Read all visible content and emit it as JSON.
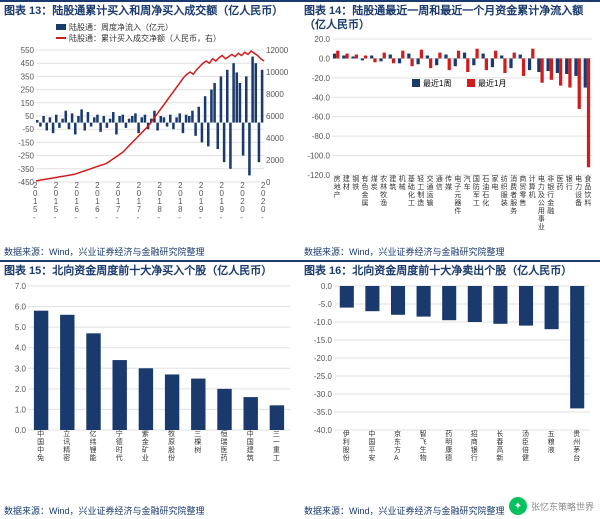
{
  "panels": {
    "tl": {
      "title": "图表 13：陆股通累计买入和周净买入成交额（亿人民币）",
      "source": "数据来源：Wind，兴业证券经济与金融研究院整理",
      "chart": {
        "type": "combo-bar-line",
        "legend": [
          {
            "label": "陆股通：周度净流入（亿元）",
            "color": "#1a3a6e",
            "kind": "bar"
          },
          {
            "label": "陆股通：累计买入成交净额（人民币，右）",
            "color": "#d01c1c",
            "kind": "line"
          }
        ],
        "x_labels": [
          "2015-03",
          "2015-09",
          "2016-03",
          "2016-09",
          "2017-03",
          "2017-09",
          "2018-03",
          "2018-09",
          "2019-03",
          "2019-09",
          "2020-03",
          "2020-09"
        ],
        "y_left": {
          "min": -450,
          "max": 550,
          "step": 100,
          "ticks": [
            -450,
            -350,
            -250,
            -150,
            -50,
            50,
            150,
            250,
            350,
            450,
            550
          ]
        },
        "y_right": {
          "min": 0,
          "max": 12000,
          "step": 2000,
          "ticks": [
            0,
            2000,
            4000,
            6000,
            8000,
            10000,
            12000
          ]
        },
        "bar_color": "#1a3a6e",
        "line_color": "#d01c1c",
        "grid_color": "#e0e0e0",
        "bars": [
          20,
          -30,
          50,
          -60,
          40,
          -80,
          60,
          -40,
          30,
          90,
          -50,
          70,
          -90,
          50,
          100,
          -60,
          80,
          -30,
          40,
          60,
          -70,
          50,
          -40,
          30,
          80,
          -90,
          50,
          60,
          -40,
          30,
          50,
          70,
          -80,
          40,
          60,
          -50,
          30,
          90,
          -60,
          50,
          40,
          -30,
          60,
          -50,
          40,
          70,
          -80,
          60,
          50,
          90,
          -100,
          120,
          -150,
          200,
          -180,
          250,
          300,
          -200,
          350,
          -300,
          400,
          -350,
          450,
          380,
          300,
          -250,
          350,
          -400,
          500,
          450,
          -300,
          400
        ],
        "line": [
          100,
          150,
          200,
          250,
          300,
          350,
          400,
          450,
          500,
          550,
          600,
          650,
          700,
          800,
          900,
          1000,
          1100,
          1200,
          1300,
          1400,
          1500,
          1600,
          1700,
          1900,
          2100,
          2300,
          2500,
          2700,
          3000,
          3300,
          3600,
          3900,
          4200,
          4500,
          4800,
          5100,
          5500,
          5900,
          6300,
          6700,
          7100,
          7500,
          7900,
          8300,
          8700,
          9100,
          9500,
          9800,
          10000,
          9800,
          10200,
          10500,
          10800,
          11000,
          10800,
          11200,
          11000,
          11300,
          11500,
          11200,
          11400,
          11600,
          11400,
          11700,
          11500,
          11800,
          11600,
          11900,
          11700,
          11500,
          11200,
          11000
        ]
      }
    },
    "tr": {
      "title": "图表 14：陆股通最近一周和最近一个月资金累计净流入额（亿人民币）",
      "source": "数据来源：Wind，兴业证券经济与金融研究院整理",
      "chart": {
        "type": "grouped-bar",
        "legend": [
          {
            "label": "最近1周",
            "color": "#1a3a6e"
          },
          {
            "label": "最近1月",
            "color": "#d01c1c"
          }
        ],
        "y": {
          "min": -120,
          "max": 20,
          "step": 20,
          "ticks": [
            -120,
            -100,
            -80,
            -60,
            -40,
            -20,
            0,
            20
          ]
        },
        "categories": [
          "房地产",
          "建材",
          "钢铁",
          "有色金属",
          "煤炭",
          "农林牧渔",
          "建筑",
          "机械",
          "基础化工",
          "轻工制造",
          "交通运输",
          "通信",
          "传媒",
          "电子元器件",
          "汽车",
          "国防军工",
          "石油石化",
          "家电",
          "纺织服装",
          "消费者服务",
          "商贸零售",
          "计算机",
          "电力及公用事业",
          "非银行金融",
          "医药",
          "银行",
          "电力设备",
          "食品饮料"
        ],
        "series_week": [
          5,
          3,
          2,
          -2,
          3,
          -3,
          4,
          -5,
          5,
          -6,
          3,
          -7,
          4,
          -8,
          6,
          -7,
          5,
          -9,
          3,
          -10,
          4,
          -12,
          -14,
          -13,
          -15,
          -16,
          -18,
          -30
        ],
        "series_month": [
          8,
          5,
          4,
          3,
          -4,
          6,
          -5,
          8,
          -8,
          9,
          -10,
          6,
          -12,
          8,
          -14,
          10,
          -12,
          8,
          -15,
          6,
          -18,
          10,
          -25,
          -22,
          -28,
          -30,
          -52,
          -112
        ],
        "bar_color_a": "#1a3a6e",
        "bar_color_b": "#d01c1c",
        "grid_color": "#e0e0e0"
      }
    },
    "bl": {
      "title": "图表 15：北向资金周度前十大净买入个股（亿人民币）",
      "source": "数据来源：Wind，兴业证券经济与金融研究院整理",
      "chart": {
        "type": "bar",
        "y": {
          "min": 0,
          "max": 7,
          "step": 1,
          "ticks": [
            0,
            1,
            2,
            3,
            4,
            5,
            6,
            7
          ]
        },
        "categories": [
          "中国中免",
          "立讯精密",
          "亿纬锂能",
          "宁德时代",
          "紫金矿业",
          "牧原股份",
          "三棵树",
          "恒瑞医药",
          "中国建筑",
          "三一重工"
        ],
        "values": [
          5.8,
          5.6,
          4.7,
          3.4,
          3.0,
          2.7,
          2.5,
          2.0,
          1.6,
          1.2
        ],
        "bar_color": "#1a3a6e",
        "grid_color": "#e0e0e0"
      }
    },
    "br": {
      "title": "图表 16：北向资金周度前十大净卖出个股（亿人民币）",
      "source": "数据来源：Wind，兴业证券经济与金融研究院整理",
      "chart": {
        "type": "bar",
        "y": {
          "min": -40,
          "max": 0,
          "step": 5,
          "ticks": [
            -40,
            -35,
            -30,
            -25,
            -20,
            -15,
            -10,
            -5,
            0
          ]
        },
        "categories": [
          "伊利股份",
          "中国平安",
          "京东方A",
          "智飞生物",
          "药明康德",
          "招商银行",
          "长春高新",
          "汤臣倍健",
          "五粮液",
          "贵州茅台"
        ],
        "values": [
          -6,
          -7,
          -8,
          -8.5,
          -9.5,
          -10,
          -10.5,
          -11,
          -12,
          -34
        ],
        "bar_color": "#1a3a6e",
        "grid_color": "#e0e0e0"
      }
    }
  },
  "watermark": {
    "label": "张忆东策略世界",
    "icon": "wechat"
  }
}
